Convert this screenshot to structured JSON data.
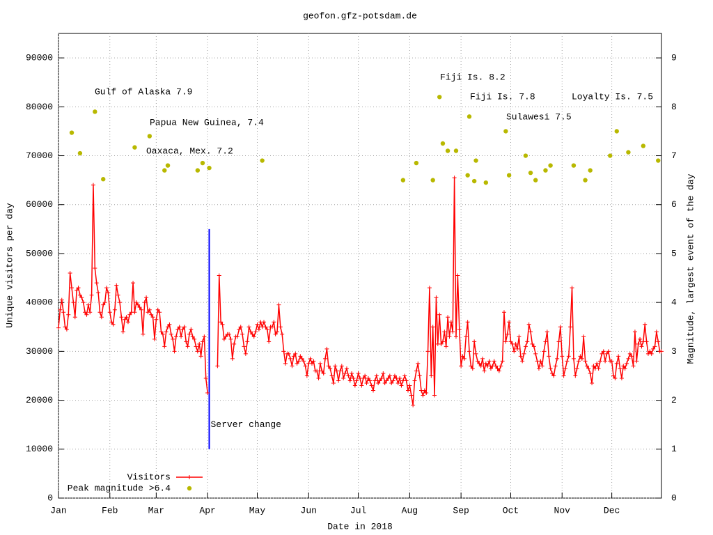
{
  "chart_data": {
    "type": "line",
    "title": "geofon.gfz-potsdam.de",
    "x_label": "Date in 2018",
    "y_label": "Unique visitors per day",
    "y2_label": "Magnitude, largest event of the day",
    "xlim": [
      1,
      365
    ],
    "xticks": [
      {
        "value": 1,
        "label": "Jan"
      },
      {
        "value": 32,
        "label": "Feb"
      },
      {
        "value": 60,
        "label": "Mar"
      },
      {
        "value": 91,
        "label": "Apr"
      },
      {
        "value": 121,
        "label": "May"
      },
      {
        "value": 152,
        "label": "Jun"
      },
      {
        "value": 182,
        "label": "Jul"
      },
      {
        "value": 213,
        "label": "Aug"
      },
      {
        "value": 244,
        "label": "Sep"
      },
      {
        "value": 274,
        "label": "Oct"
      },
      {
        "value": 305,
        "label": "Nov"
      },
      {
        "value": 335,
        "label": "Dec"
      }
    ],
    "ylim": [
      0,
      95000
    ],
    "yticks": [
      0,
      10000,
      20000,
      30000,
      40000,
      50000,
      60000,
      70000,
      80000,
      90000
    ],
    "y2lim": [
      0,
      9.5
    ],
    "y2ticks": [
      0,
      1,
      2,
      3,
      4,
      5,
      6,
      7,
      8,
      9
    ],
    "grid": true,
    "legend": "bottom-left",
    "series": [
      {
        "name": "Visitors",
        "color": "#ff0000",
        "style": "linespoints",
        "x": [
          1,
          2,
          3,
          4,
          5,
          6,
          7,
          8,
          9,
          10,
          11,
          12,
          13,
          14,
          15,
          16,
          17,
          18,
          19,
          20,
          21,
          22,
          23,
          24,
          25,
          26,
          27,
          28,
          29,
          30,
          31,
          32,
          33,
          34,
          35,
          36,
          37,
          38,
          39,
          40,
          41,
          42,
          43,
          44,
          45,
          46,
          47,
          48,
          49,
          50,
          51,
          52,
          53,
          54,
          55,
          56,
          57,
          58,
          59,
          60,
          61,
          62,
          63,
          64,
          65,
          66,
          67,
          68,
          69,
          70,
          71,
          72,
          73,
          74,
          75,
          76,
          77,
          78,
          79,
          80,
          81,
          82,
          83,
          84,
          85,
          86,
          87,
          88,
          89,
          90,
          91,
          92,
          93,
          94,
          95,
          96,
          97,
          98,
          99,
          100,
          101,
          102,
          103,
          104,
          105,
          106,
          107,
          108,
          109,
          110,
          111,
          112,
          113,
          114,
          115,
          116,
          117,
          118,
          119,
          120,
          121,
          122,
          123,
          124,
          125,
          126,
          127,
          128,
          129,
          130,
          131,
          132,
          133,
          134,
          135,
          136,
          137,
          138,
          139,
          140,
          141,
          142,
          143,
          144,
          145,
          146,
          147,
          148,
          149,
          150,
          151,
          152,
          153,
          154,
          155,
          156,
          157,
          158,
          159,
          160,
          161,
          162,
          163,
          164,
          165,
          166,
          167,
          168,
          169,
          170,
          171,
          172,
          173,
          174,
          175,
          176,
          177,
          178,
          179,
          180,
          181,
          182,
          183,
          184,
          185,
          186,
          187,
          188,
          189,
          190,
          191,
          192,
          193,
          194,
          195,
          196,
          197,
          198,
          199,
          200,
          201,
          202,
          203,
          204,
          205,
          206,
          207,
          208,
          209,
          210,
          211,
          212,
          213,
          214,
          215,
          216,
          217,
          218,
          219,
          220,
          221,
          222,
          223,
          224,
          225,
          226,
          227,
          228,
          229,
          230,
          231,
          232,
          233,
          234,
          235,
          236,
          237,
          238,
          239,
          240,
          241,
          242,
          243,
          244,
          245,
          246,
          247,
          248,
          249,
          250,
          251,
          252,
          253,
          254,
          255,
          256,
          257,
          258,
          259,
          260,
          261,
          262,
          263,
          264,
          265,
          266,
          267,
          268,
          269,
          270,
          271,
          272,
          273,
          274,
          275,
          276,
          277,
          278,
          279,
          280,
          281,
          282,
          283,
          284,
          285,
          286,
          287,
          288,
          289,
          290,
          291,
          292,
          293,
          294,
          295,
          296,
          297,
          298,
          299,
          300,
          301,
          302,
          303,
          304,
          305,
          306,
          307,
          308,
          309,
          310,
          311,
          312,
          313,
          314,
          315,
          316,
          317,
          318,
          319,
          320,
          321,
          322,
          323,
          324,
          325,
          326,
          327,
          328,
          329,
          330,
          331,
          332,
          333,
          334,
          335,
          336,
          337,
          338,
          339,
          340,
          341,
          342,
          343,
          344,
          345,
          346,
          347,
          348,
          349,
          350,
          351,
          352,
          353,
          354,
          355,
          356,
          357,
          358,
          359,
          360,
          361,
          362,
          363,
          364,
          365
        ],
        "values": [
          34800,
          38500,
          40500,
          38000,
          35000,
          34500,
          37500,
          46000,
          43000,
          40000,
          37000,
          42500,
          43000,
          41500,
          41000,
          40000,
          38000,
          37500,
          39500,
          38000,
          41500,
          64000,
          47000,
          44000,
          42000,
          38000,
          37000,
          39500,
          40000,
          43000,
          42000,
          38000,
          36000,
          35500,
          38500,
          43500,
          41500,
          40000,
          37000,
          34000,
          36500,
          37000,
          36000,
          37500,
          38000,
          44000,
          38000,
          40000,
          39500,
          39000,
          38500,
          33500,
          40000,
          41000,
          38000,
          38500,
          37500,
          37000,
          32500,
          36500,
          38500,
          38000,
          34000,
          33500,
          31000,
          34000,
          35000,
          35500,
          33500,
          32500,
          30000,
          33000,
          34500,
          35000,
          33000,
          34500,
          35000,
          32000,
          31000,
          33500,
          34500,
          33000,
          32500,
          31000,
          30000,
          31500,
          29000,
          32000,
          33000,
          24500,
          21500,
          null,
          null,
          null,
          null,
          null,
          27000,
          45500,
          36000,
          35500,
          32500,
          33000,
          33500,
          33500,
          32500,
          28500,
          31500,
          33000,
          33000,
          34500,
          35000,
          33500,
          31000,
          29500,
          32000,
          35000,
          34000,
          33500,
          33000,
          34000,
          35500,
          34500,
          36000,
          35000,
          36000,
          35000,
          34500,
          32000,
          35000,
          35000,
          36000,
          33500,
          34000,
          39500,
          35000,
          33500,
          30000,
          27500,
          29500,
          29500,
          28500,
          27000,
          29000,
          29500,
          27500,
          28000,
          29000,
          28500,
          28000,
          27000,
          25000,
          27500,
          28500,
          27500,
          28000,
          26000,
          26000,
          24500,
          27500,
          26000,
          25500,
          28500,
          30500,
          27000,
          26500,
          25000,
          23500,
          27000,
          26000,
          24000,
          26000,
          27000,
          24500,
          25500,
          26500,
          25000,
          24000,
          25500,
          24500,
          23000,
          24000,
          25500,
          24500,
          23000,
          24500,
          25000,
          23500,
          24500,
          24000,
          23000,
          22000,
          24000,
          25000,
          23500,
          24000,
          24500,
          25500,
          23500,
          24000,
          24500,
          25000,
          23500,
          24000,
          25000,
          24500,
          23500,
          24500,
          23000,
          24000,
          25000,
          24000,
          22000,
          23000,
          21000,
          19000,
          24000,
          26000,
          27500,
          25000,
          22000,
          21000,
          22000,
          21500,
          30000,
          43000,
          25000,
          35000,
          21000,
          41000,
          31500,
          37500,
          31500,
          32000,
          34000,
          31000,
          37000,
          33000,
          36000,
          34000,
          65500,
          33000,
          45500,
          34500,
          27000,
          29000,
          28500,
          33000,
          36000,
          30000,
          27000,
          26500,
          32000,
          29500,
          28000,
          27500,
          27000,
          28500,
          26000,
          27500,
          27000,
          28000,
          26500,
          27000,
          28000,
          27000,
          26500,
          26000,
          27000,
          28000,
          38000,
          32000,
          33500,
          36000,
          32000,
          31500,
          30000,
          31500,
          30500,
          33000,
          29000,
          28000,
          29500,
          31000,
          32000,
          35500,
          34000,
          31500,
          31000,
          29500,
          28000,
          26500,
          28000,
          27000,
          30000,
          32000,
          34000,
          29000,
          26500,
          25500,
          25000,
          27000,
          28500,
          32000,
          35000,
          29000,
          25000,
          26500,
          28000,
          29000,
          35000,
          43000,
          28500,
          25000,
          26500,
          28000,
          29000,
          28500,
          33000,
          28000,
          27000,
          26500,
          25500,
          23500,
          27000,
          26500,
          27500,
          26500,
          28000,
          29500,
          30000,
          28000,
          29500,
          30000,
          28000,
          28000,
          25000,
          24500,
          27500,
          29000,
          26500,
          24500,
          27000,
          26500,
          27500,
          28500,
          29500,
          29000,
          27000,
          34000,
          28000,
          31500,
          32500,
          31000,
          32000,
          35500,
          32000,
          29500,
          30000,
          29500,
          30500,
          31000,
          34000,
          32000,
          30000,
          30000
        ]
      },
      {
        "name": "Peak magnitude >6.4",
        "color": "#b8b800",
        "style": "points",
        "axis": "y2",
        "x": [
          9,
          14,
          23,
          28,
          47,
          56,
          65,
          67,
          85,
          88,
          92,
          124,
          209,
          217,
          227,
          231,
          233,
          236,
          241,
          248,
          249,
          252,
          253,
          259,
          271,
          273,
          283,
          286,
          289,
          295,
          298,
          312,
          319,
          322,
          334,
          338,
          345,
          354,
          363
        ],
        "values": [
          7.47,
          7.05,
          7.9,
          6.52,
          7.17,
          7.4,
          6.7,
          6.8,
          6.7,
          6.85,
          6.75,
          6.9,
          6.5,
          6.85,
          6.5,
          8.2,
          7.25,
          7.1,
          7.1,
          6.6,
          7.8,
          6.48,
          6.9,
          6.45,
          7.5,
          6.6,
          7.0,
          6.65,
          6.5,
          6.7,
          6.8,
          6.8,
          6.5,
          6.7,
          7.0,
          7.5,
          7.07,
          7.2,
          6.9
        ]
      }
    ],
    "annotations": [
      "Gulf of Alaska 7.9",
      "Papua New Guinea, 7.4",
      "Oaxaca, Mex. 7.2",
      "Fiji Is. 8.2",
      "Fiji Is. 7.8",
      "Sulawesi 7.5",
      "Loyalty Is. 7.5"
    ],
    "server_change": {
      "x": 92,
      "from": 10000,
      "to": 55000,
      "label": "Server change",
      "color": "#0000ff"
    }
  }
}
